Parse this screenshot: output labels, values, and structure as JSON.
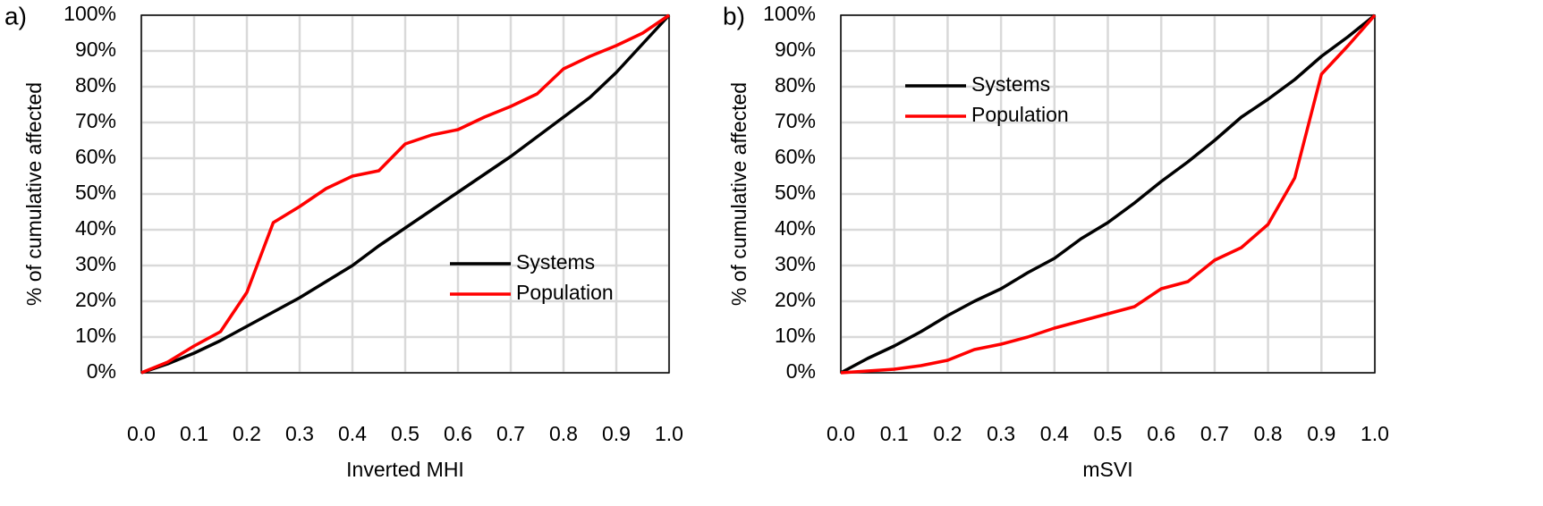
{
  "chart_data": [
    {
      "type": "line",
      "panel_label": "a)",
      "xlabel": "Inverted MHI",
      "ylabel": "% of cumulative affected",
      "x": [
        0,
        0.05,
        0.1,
        0.15,
        0.2,
        0.25,
        0.3,
        0.35,
        0.4,
        0.45,
        0.5,
        0.55,
        0.6,
        0.65,
        0.7,
        0.75,
        0.8,
        0.85,
        0.9,
        0.95,
        1
      ],
      "series": [
        {
          "name": "Systems",
          "color": "#000000",
          "values": [
            0,
            2.5,
            5.5,
            9,
            13,
            17,
            21,
            25.5,
            30,
            35.5,
            40.5,
            45.5,
            50.5,
            55.5,
            60.5,
            66,
            71.5,
            77,
            84,
            92,
            100
          ]
        },
        {
          "name": "Population",
          "color": "#ff0000",
          "values": [
            0,
            3,
            7.5,
            11.5,
            22.5,
            42,
            46.5,
            51.5,
            55,
            56.5,
            64,
            66.5,
            68,
            71.5,
            74.5,
            78,
            85,
            88.5,
            91.5,
            95,
            100
          ]
        }
      ],
      "xlim": [
        0,
        1
      ],
      "xticks": [
        {
          "value": 0,
          "label": "0.0"
        },
        0.1,
        0.2,
        0.3,
        0.4,
        0.5,
        0.6,
        0.7,
        0.8,
        0.9,
        {
          "value": 1,
          "label": "1.0"
        }
      ],
      "ylim": [
        0,
        100
      ],
      "yticks": [
        {
          "value": 0,
          "label": "0%"
        },
        {
          "value": 10,
          "label": "10%"
        },
        {
          "value": 20,
          "label": "20%"
        },
        {
          "value": 30,
          "label": "30%"
        },
        {
          "value": 40,
          "label": "40%"
        },
        {
          "value": 50,
          "label": "50%"
        },
        {
          "value": 60,
          "label": "60%"
        },
        {
          "value": 70,
          "label": "70%"
        },
        {
          "value": 80,
          "label": "80%"
        },
        {
          "value": 90,
          "label": "90%"
        },
        {
          "value": 100,
          "label": "100%"
        }
      ],
      "grid": true,
      "legend": "center right"
    },
    {
      "type": "line",
      "panel_label": "b)",
      "xlabel": "mSVI",
      "ylabel": "% of cumulative affected",
      "x": [
        0,
        0.05,
        0.1,
        0.15,
        0.2,
        0.25,
        0.3,
        0.35,
        0.4,
        0.45,
        0.5,
        0.55,
        0.6,
        0.65,
        0.7,
        0.75,
        0.8,
        0.85,
        0.9,
        0.95,
        1
      ],
      "series": [
        {
          "name": "Systems",
          "color": "#000000",
          "values": [
            0,
            4,
            7.5,
            11.5,
            16,
            20,
            23.5,
            28,
            32,
            37.5,
            42,
            47.5,
            53.5,
            59,
            65,
            71.5,
            76.5,
            82,
            88.5,
            94,
            100
          ]
        },
        {
          "name": "Population",
          "color": "#ff0000",
          "values": [
            0,
            0.5,
            1,
            2,
            3.5,
            6.5,
            8,
            10,
            12.5,
            14.5,
            16.5,
            18.5,
            23.5,
            25.5,
            31.5,
            35,
            41.5,
            54.5,
            83.5,
            91.5,
            100
          ]
        }
      ],
      "xlim": [
        0,
        1
      ],
      "xticks": [
        {
          "value": 0,
          "label": "0.0"
        },
        0.1,
        0.2,
        0.3,
        0.4,
        0.5,
        0.6,
        0.7,
        0.8,
        0.9,
        {
          "value": 1,
          "label": "1.0"
        }
      ],
      "ylim": [
        0,
        100
      ],
      "yticks": [
        {
          "value": 0,
          "label": "0%"
        },
        {
          "value": 10,
          "label": "10%"
        },
        {
          "value": 20,
          "label": "20%"
        },
        {
          "value": 30,
          "label": "30%"
        },
        {
          "value": 40,
          "label": "40%"
        },
        {
          "value": 50,
          "label": "50%"
        },
        {
          "value": 60,
          "label": "60%"
        },
        {
          "value": 70,
          "label": "70%"
        },
        {
          "value": 80,
          "label": "80%"
        },
        {
          "value": 90,
          "label": "90%"
        },
        {
          "value": 100,
          "label": "100%"
        }
      ],
      "grid": true,
      "legend": "upper left"
    }
  ]
}
